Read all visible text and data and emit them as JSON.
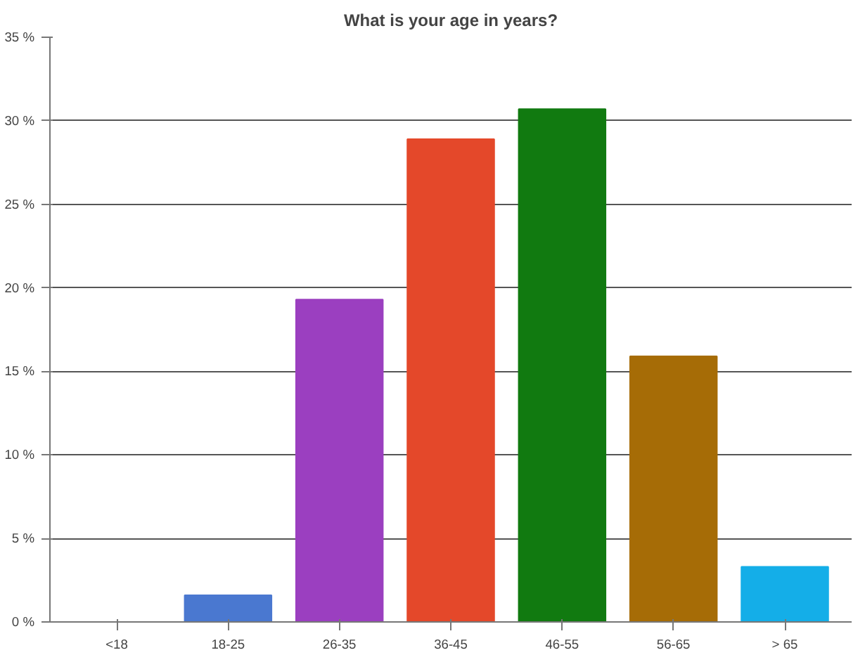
{
  "chart_data": {
    "type": "bar",
    "title": "What is your age in years?",
    "categories": [
      "<18",
      "18-25",
      "26-35",
      "36-45",
      "46-55",
      "56-65",
      "> 65"
    ],
    "values": [
      0,
      1.6,
      19.3,
      28.9,
      30.7,
      15.9,
      3.3
    ],
    "colors": [
      "#4a78d0",
      "#4a78d0",
      "#9b3fc0",
      "#e4482a",
      "#117a10",
      "#a66c06",
      "#14aee8"
    ],
    "ylim": [
      0,
      35
    ],
    "yticks": [
      {
        "value": 0,
        "label": "0 %"
      },
      {
        "value": 5,
        "label": "5 %"
      },
      {
        "value": 10,
        "label": "10 %"
      },
      {
        "value": 15,
        "label": "15 %"
      },
      {
        "value": 20,
        "label": "20 %"
      },
      {
        "value": 25,
        "label": "25 %"
      },
      {
        "value": 30,
        "label": "30 %"
      },
      {
        "value": 35,
        "label": "35 %"
      }
    ],
    "grid": "y"
  }
}
